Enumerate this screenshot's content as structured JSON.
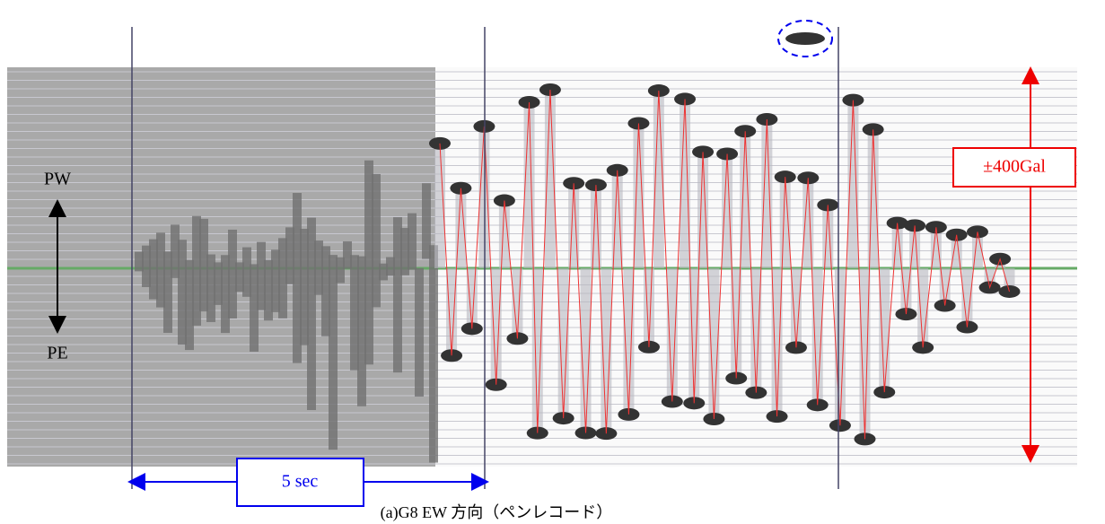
{
  "labels": {
    "upper": "PW",
    "lower": "PE",
    "time_scale": "5 sec",
    "amplitude_scale": "±400Gal"
  },
  "caption": "(a)G8 EW 方向（ペンレコード）"
}
